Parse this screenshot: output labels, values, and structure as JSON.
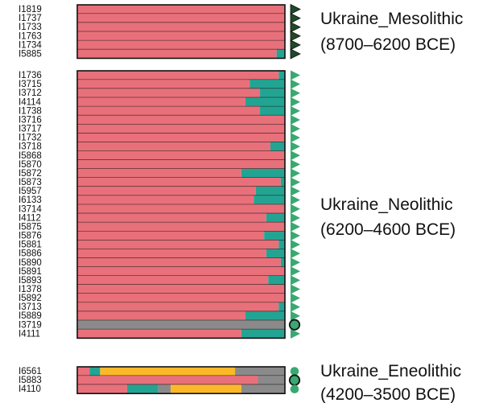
{
  "chart_data": {
    "type": "stacked-bar",
    "orientation": "horizontal",
    "xlim": [
      0,
      1
    ],
    "colors": {
      "red": "#e8707a",
      "teal": "#23a493",
      "yellow": "#fbb829",
      "gray": "#8a8a8a",
      "marker_green": "#3aa872",
      "marker_dark": "#1f4a28",
      "outline": "#111111"
    },
    "groups": [
      {
        "name": "Ukraine_Mesolithic",
        "date": "(8700–6200 BCE)",
        "marker": "triangle-dark",
        "samples": [
          {
            "id": "I1819",
            "components": {
              "red": 1.0
            }
          },
          {
            "id": "I1737",
            "components": {
              "red": 1.0
            }
          },
          {
            "id": "I1733",
            "components": {
              "red": 1.0
            }
          },
          {
            "id": "I1763",
            "components": {
              "red": 1.0
            }
          },
          {
            "id": "I1734",
            "components": {
              "red": 1.0
            }
          },
          {
            "id": "I5885",
            "components": {
              "red": 0.96,
              "teal": 0.04
            }
          }
        ]
      },
      {
        "name": "Ukraine_Neolithic",
        "date": "(6200–4600 BCE)",
        "marker": "triangle-green",
        "samples": [
          {
            "id": "I1736",
            "components": {
              "red": 0.97,
              "teal": 0.03
            }
          },
          {
            "id": "I3715",
            "components": {
              "red": 0.83,
              "teal": 0.17
            }
          },
          {
            "id": "I3712",
            "components": {
              "red": 0.88,
              "teal": 0.12
            }
          },
          {
            "id": "I4114",
            "components": {
              "red": 0.81,
              "teal": 0.19
            }
          },
          {
            "id": "I1738",
            "components": {
              "red": 0.88,
              "teal": 0.12
            }
          },
          {
            "id": "I3716",
            "components": {
              "red": 1.0
            }
          },
          {
            "id": "I3717",
            "components": {
              "red": 1.0
            }
          },
          {
            "id": "I1732",
            "components": {
              "red": 1.0
            }
          },
          {
            "id": "I3718",
            "components": {
              "red": 0.93,
              "teal": 0.07
            }
          },
          {
            "id": "I5868",
            "components": {
              "red": 1.0
            }
          },
          {
            "id": "I5870",
            "components": {
              "red": 1.0
            }
          },
          {
            "id": "I5872",
            "components": {
              "red": 0.79,
              "teal": 0.21
            }
          },
          {
            "id": "I5873",
            "components": {
              "red": 0.98,
              "teal": 0.02
            }
          },
          {
            "id": "I5957",
            "components": {
              "red": 0.86,
              "teal": 0.14
            }
          },
          {
            "id": "I6133",
            "components": {
              "red": 0.85,
              "teal": 0.15
            }
          },
          {
            "id": "I3714",
            "components": {
              "red": 1.0
            }
          },
          {
            "id": "I4112",
            "components": {
              "red": 0.91,
              "teal": 0.09
            }
          },
          {
            "id": "I5875",
            "components": {
              "red": 1.0
            }
          },
          {
            "id": "I5876",
            "components": {
              "red": 0.9,
              "teal": 0.1
            }
          },
          {
            "id": "I5881",
            "components": {
              "red": 0.97,
              "teal": 0.03
            }
          },
          {
            "id": "I5886",
            "components": {
              "red": 0.91,
              "teal": 0.09
            }
          },
          {
            "id": "I5890",
            "components": {
              "red": 0.98,
              "teal": 0.02
            }
          },
          {
            "id": "I5891",
            "components": {
              "red": 1.0
            }
          },
          {
            "id": "I5893",
            "components": {
              "red": 0.92,
              "teal": 0.08
            }
          },
          {
            "id": "I1378",
            "components": {
              "red": 1.0
            }
          },
          {
            "id": "I5892",
            "components": {
              "red": 1.0
            }
          },
          {
            "id": "I3713",
            "components": {
              "red": 0.97,
              "teal": 0.03
            }
          },
          {
            "id": "I5889",
            "components": {
              "red": 0.81,
              "teal": 0.19
            }
          },
          {
            "id": "I3719",
            "components": {
              "gray": 1.0
            },
            "marker": "circle"
          },
          {
            "id": "I4111",
            "components": {
              "red": 0.79,
              "teal": 0.21
            }
          }
        ]
      },
      {
        "name": "Ukraine_Eneolithic",
        "date": "(4200–3500 BCE)",
        "marker": "circle-green",
        "samples": [
          {
            "id": "I6561",
            "components": {
              "red": 0.06,
              "teal": 0.05,
              "yellow": 0.65,
              "gray": 0.24
            }
          },
          {
            "id": "I5883",
            "components": {
              "red": 0.87,
              "gray": 0.13
            },
            "marker": "circle"
          },
          {
            "id": "I4110",
            "components": {
              "red": 0.24,
              "teal": 0.15,
              "gray": 0.06,
              "yellow": 0.34,
              "gray2": 0.21
            }
          }
        ]
      }
    ]
  }
}
